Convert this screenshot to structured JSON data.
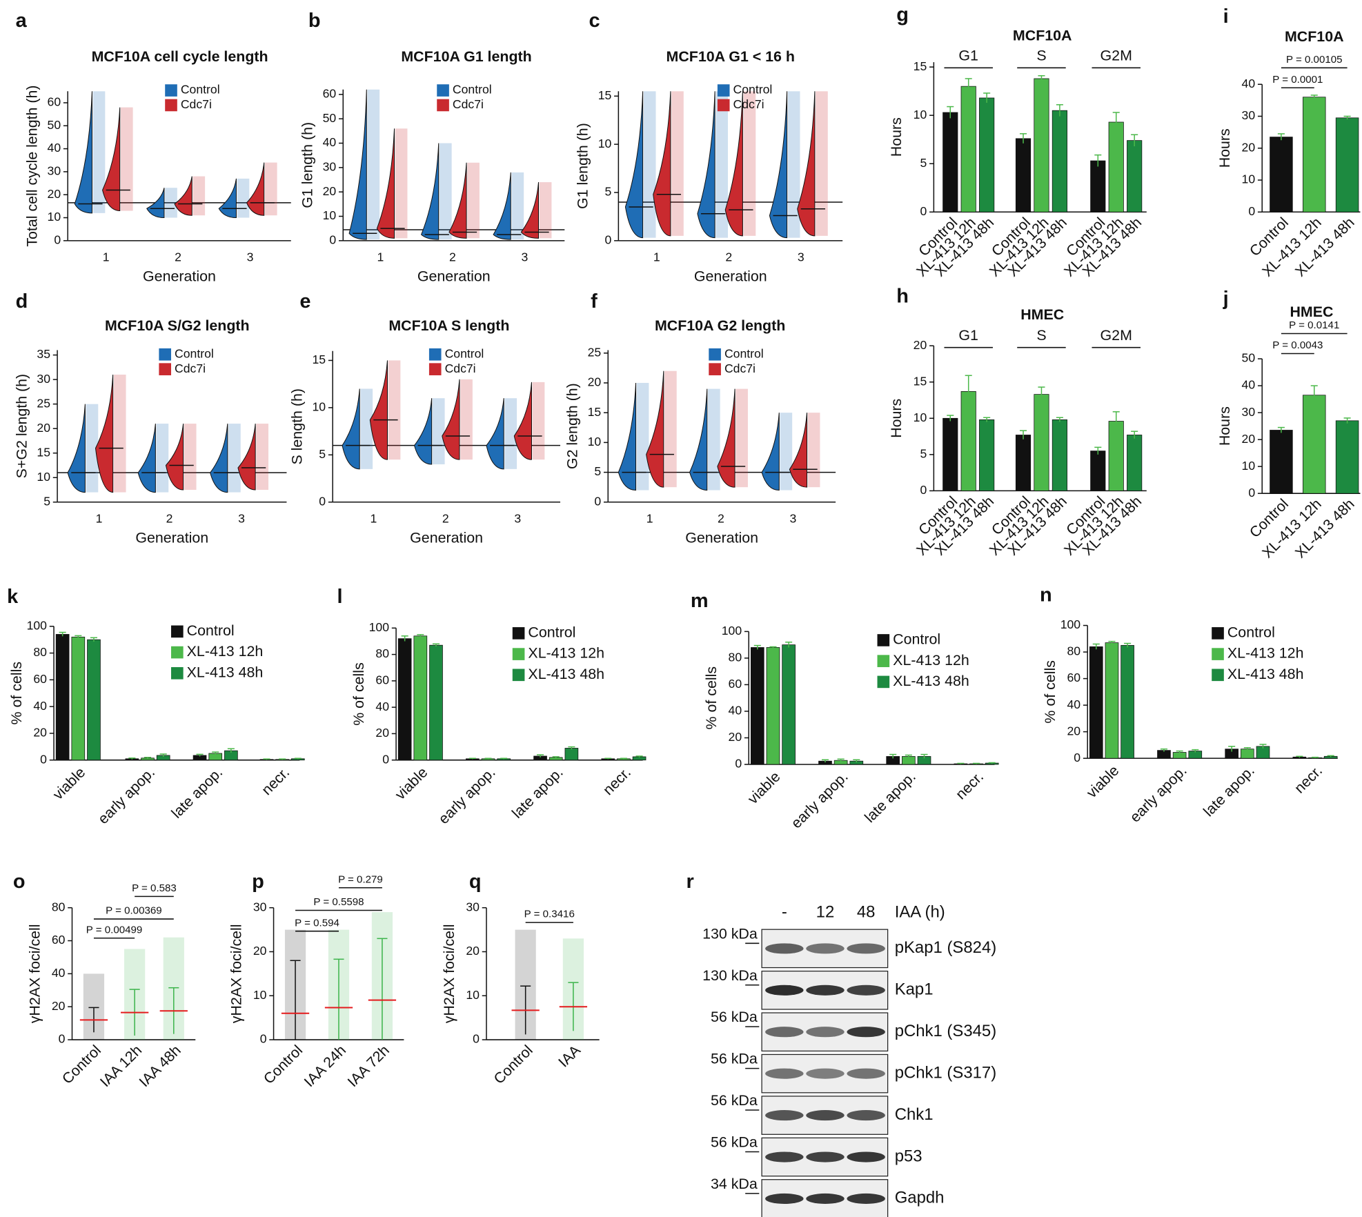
{
  "chart_data": [
    {
      "panel": "a",
      "type": "violin",
      "title": "MCF10A cell cycle length",
      "ylabel": "Total cell cycle length (h)",
      "xlabel": "Generation",
      "categories": [
        "1",
        "2",
        "3"
      ],
      "ylim": [
        0,
        65
      ],
      "yticks": [
        0,
        10,
        20,
        30,
        40,
        50,
        60
      ],
      "reference_line": 16.5,
      "legend": "upper right",
      "series": [
        {
          "name": "Control",
          "color": "#1f6db5",
          "values": [
            16,
            14,
            14
          ],
          "low": [
            12,
            10,
            10
          ],
          "high": [
            65,
            23,
            27
          ]
        },
        {
          "name": "Cdc7i",
          "color": "#c92a2f",
          "values": [
            22,
            16,
            16.5
          ],
          "low": [
            13,
            11,
            11
          ],
          "high": [
            58,
            28,
            34
          ]
        }
      ]
    },
    {
      "panel": "b",
      "type": "violin",
      "title": "MCF10A G1 length",
      "ylabel": "G1 length (h)",
      "xlabel": "Generation",
      "categories": [
        "1",
        "2",
        "3"
      ],
      "ylim": [
        0,
        62
      ],
      "yticks": [
        0,
        10,
        20,
        30,
        40,
        50,
        60
      ],
      "reference_line": 4.5,
      "legend": "upper right",
      "series": [
        {
          "name": "Control",
          "color": "#1f6db5",
          "values": [
            3,
            2.5,
            2.5
          ],
          "low": [
            0.5,
            0.5,
            0.5
          ],
          "high": [
            62,
            40,
            28
          ]
        },
        {
          "name": "Cdc7i",
          "color": "#c92a2f",
          "values": [
            5,
            3.5,
            3.5
          ],
          "low": [
            1,
            1,
            1
          ],
          "high": [
            46,
            32,
            24
          ]
        }
      ]
    },
    {
      "panel": "c",
      "type": "violin",
      "title": "MCF10A G1 < 16 h",
      "ylabel": "G1 length (h)",
      "xlabel": "Generation",
      "categories": [
        "1",
        "2",
        "3"
      ],
      "ylim": [
        0,
        15.5
      ],
      "yticks": [
        0,
        5,
        10,
        15
      ],
      "reference_line": 4,
      "legend": "upper right",
      "series": [
        {
          "name": "Control",
          "color": "#1f6db5",
          "values": [
            3.5,
            2.8,
            2.6
          ],
          "low": [
            0.3,
            0.3,
            0.3
          ],
          "high": [
            15.5,
            15.5,
            15.5
          ]
        },
        {
          "name": "Cdc7i",
          "color": "#c92a2f",
          "values": [
            4.8,
            3.2,
            3.3
          ],
          "low": [
            0.5,
            0.5,
            0.5
          ],
          "high": [
            15.5,
            15.5,
            15.5
          ]
        }
      ]
    },
    {
      "panel": "d",
      "type": "violin",
      "title": "MCF10A S/G2 length",
      "ylabel": "S+G2 length (h)",
      "xlabel": "Generation",
      "categories": [
        "1",
        "2",
        "3"
      ],
      "ylim": [
        5,
        36
      ],
      "yticks": [
        5,
        10,
        15,
        20,
        25,
        30,
        35
      ],
      "reference_line": 11,
      "legend": "upper right",
      "series": [
        {
          "name": "Control",
          "color": "#1f6db5",
          "values": [
            11,
            11,
            11
          ],
          "low": [
            7,
            7,
            7
          ],
          "high": [
            25,
            21,
            21
          ]
        },
        {
          "name": "Cdc7i",
          "color": "#c92a2f",
          "values": [
            16,
            12.5,
            12
          ],
          "low": [
            7,
            7.5,
            7.5
          ],
          "high": [
            31,
            21,
            21
          ]
        }
      ]
    },
    {
      "panel": "e",
      "type": "violin",
      "title": "MCF10A S length",
      "ylabel": "S length (h)",
      "xlabel": "Generation",
      "categories": [
        "1",
        "2",
        "3"
      ],
      "ylim": [
        0,
        16
      ],
      "yticks": [
        0,
        5,
        10,
        15
      ],
      "reference_line": 6,
      "legend": "upper right",
      "series": [
        {
          "name": "Control",
          "color": "#1f6db5",
          "values": [
            6,
            6,
            6
          ],
          "low": [
            3.5,
            4,
            3.5
          ],
          "high": [
            12,
            11,
            11
          ]
        },
        {
          "name": "Cdc7i",
          "color": "#c92a2f",
          "values": [
            8.7,
            7,
            7
          ],
          "low": [
            4.5,
            4.5,
            4.5
          ],
          "high": [
            15,
            13,
            12.7
          ]
        }
      ]
    },
    {
      "panel": "f",
      "type": "violin",
      "title": "MCF10A G2 length",
      "ylabel": "G2 length (h)",
      "xlabel": "Generation",
      "categories": [
        "1",
        "2",
        "3"
      ],
      "ylim": [
        0,
        25.5
      ],
      "yticks": [
        0,
        5,
        10,
        15,
        20,
        25
      ],
      "reference_line": 5,
      "legend": "upper right",
      "series": [
        {
          "name": "Control",
          "color": "#1f6db5",
          "values": [
            5,
            5,
            5
          ],
          "low": [
            2,
            2,
            2
          ],
          "high": [
            20,
            19,
            15
          ]
        },
        {
          "name": "Cdc7i",
          "color": "#c92a2f",
          "values": [
            8,
            6,
            5.5
          ],
          "low": [
            2.5,
            2.5,
            2.5
          ],
          "high": [
            22,
            19,
            15
          ]
        }
      ]
    },
    {
      "panel": "g",
      "type": "grouped_bar",
      "title": "MCF10A",
      "ylabel": "Hours",
      "categories": [
        "G1",
        "S",
        "G2M"
      ],
      "ylim": [
        0,
        15.5
      ],
      "yticks": [
        0,
        5,
        10,
        15
      ],
      "series": [
        {
          "name": "Control",
          "color": "#111111",
          "values": [
            10.3,
            7.6,
            5.3
          ],
          "errors": [
            0.6,
            0.5,
            0.6
          ]
        },
        {
          "name": "XL-413 12h",
          "color": "#4cb84a",
          "values": [
            13,
            13.8,
            9.3
          ],
          "errors": [
            0.8,
            0.3,
            1
          ]
        },
        {
          "name": "XL-413 48h",
          "color": "#1d8a40",
          "values": [
            11.8,
            10.5,
            7.4
          ],
          "errors": [
            0.5,
            0.6,
            0.6
          ]
        }
      ]
    },
    {
      "panel": "h",
      "type": "grouped_bar",
      "title": "HMEC",
      "ylabel": "Hours",
      "categories": [
        "G1",
        "S",
        "G2M"
      ],
      "ylim": [
        0,
        20
      ],
      "yticks": [
        0,
        5,
        10,
        15,
        20
      ],
      "series": [
        {
          "name": "Control",
          "color": "#111111",
          "values": [
            10,
            7.7,
            5.5
          ],
          "errors": [
            0.4,
            0.6,
            0.5
          ]
        },
        {
          "name": "XL-413 12h",
          "color": "#4cb84a",
          "values": [
            13.7,
            13.3,
            9.6
          ],
          "errors": [
            2.2,
            1,
            1.3
          ]
        },
        {
          "name": "XL-413 48h",
          "color": "#1d8a40",
          "values": [
            9.8,
            9.8,
            7.7
          ],
          "errors": [
            0.3,
            0.3,
            0.5
          ]
        }
      ]
    },
    {
      "panel": "i",
      "type": "bar",
      "title": "MCF10A",
      "ylabel": "Hours",
      "categories": [
        "Control",
        "XL-413 12h",
        "XL-413 48h"
      ],
      "values": [
        23.5,
        36,
        29.5
      ],
      "errors": [
        1,
        0.6,
        0.5
      ],
      "colors": [
        "#111111",
        "#4cb84a",
        "#1d8a40"
      ],
      "ylim": [
        0,
        40
      ],
      "yticks": [
        0,
        10,
        20,
        30,
        40
      ],
      "comparisons": [
        {
          "pair": [
            0,
            1
          ],
          "label": "P = 0.0001"
        },
        {
          "pair": [
            0,
            2
          ],
          "label": "P = 0.00105"
        }
      ]
    },
    {
      "panel": "j",
      "type": "bar",
      "title": "HMEC",
      "ylabel": "Hours",
      "categories": [
        "Control",
        "XL-413 12h",
        "XL-413 48h"
      ],
      "values": [
        23.5,
        36.5,
        27
      ],
      "errors": [
        1,
        3.5,
        1
      ],
      "colors": [
        "#111111",
        "#4cb84a",
        "#1d8a40"
      ],
      "ylim": [
        0,
        50
      ],
      "yticks": [
        0,
        10,
        20,
        30,
        40,
        50
      ],
      "comparisons": [
        {
          "pair": [
            0,
            1
          ],
          "label": "P = 0.0043"
        },
        {
          "pair": [
            0,
            2
          ],
          "label": "P = 0.0141"
        }
      ]
    },
    {
      "panel": "k",
      "type": "grouped_bar",
      "ylabel": "% of cells",
      "categories": [
        "viable",
        "early apop.",
        "late apop.",
        "necr."
      ],
      "ylim": [
        0,
        100
      ],
      "yticks": [
        0,
        20,
        40,
        60,
        80,
        100
      ],
      "legend": "upper right",
      "series": [
        {
          "name": "Control",
          "color": "#111111",
          "values": [
            94,
            1,
            3.5,
            0.5
          ],
          "errors": [
            1.5,
            0.5,
            0.8,
            0.3
          ]
        },
        {
          "name": "XL-413 12h",
          "color": "#4cb84a",
          "values": [
            92,
            1.5,
            5,
            0.5
          ],
          "errors": [
            1,
            0.5,
            1,
            0.3
          ]
        },
        {
          "name": "XL-413 48h",
          "color": "#1d8a40",
          "values": [
            90,
            3.5,
            7,
            1
          ],
          "errors": [
            1.5,
            1,
            1.5,
            0.3
          ]
        }
      ]
    },
    {
      "panel": "l",
      "type": "grouped_bar",
      "ylabel": "% of cells",
      "categories": [
        "viable",
        "early apop.",
        "late apop.",
        "necr."
      ],
      "ylim": [
        0,
        100
      ],
      "yticks": [
        0,
        20,
        40,
        60,
        80,
        100
      ],
      "legend": "upper right",
      "series": [
        {
          "name": "Control",
          "color": "#111111",
          "values": [
            92,
            1,
            3,
            1
          ],
          "errors": [
            2,
            0.3,
            1,
            0.3
          ]
        },
        {
          "name": "XL-413 12h",
          "color": "#4cb84a",
          "values": [
            94,
            1,
            2,
            1
          ],
          "errors": [
            1,
            0.3,
            0.5,
            0.3
          ]
        },
        {
          "name": "XL-413 48h",
          "color": "#1d8a40",
          "values": [
            87,
            1,
            9,
            2.5
          ],
          "errors": [
            1,
            0.3,
            1,
            0.5
          ]
        }
      ]
    },
    {
      "panel": "m",
      "type": "grouped_bar",
      "ylabel": "% of cells",
      "categories": [
        "viable",
        "early apop.",
        "late apop.",
        "necr."
      ],
      "ylim": [
        0,
        100
      ],
      "yticks": [
        0,
        20,
        40,
        60,
        80,
        100
      ],
      "legend": "upper right",
      "series": [
        {
          "name": "Control",
          "color": "#111111",
          "values": [
            88,
            2.5,
            6,
            0.5
          ],
          "errors": [
            1.5,
            1,
            1.5,
            0.3
          ]
        },
        {
          "name": "XL-413 12h",
          "color": "#4cb84a",
          "values": [
            88,
            3,
            6,
            0.5
          ],
          "errors": [
            0.5,
            1,
            1,
            0.3
          ]
        },
        {
          "name": "XL-413 48h",
          "color": "#1d8a40",
          "values": [
            90,
            2.5,
            6,
            1
          ],
          "errors": [
            2,
            1,
            1.5,
            0.3
          ]
        }
      ]
    },
    {
      "panel": "n",
      "type": "grouped_bar",
      "ylabel": "% of cells",
      "categories": [
        "viable",
        "early apop.",
        "late apop.",
        "necr."
      ],
      "ylim": [
        0,
        100
      ],
      "yticks": [
        0,
        20,
        40,
        60,
        80,
        100
      ],
      "legend": "upper right",
      "series": [
        {
          "name": "Control",
          "color": "#111111",
          "values": [
            84,
            6,
            7,
            1
          ],
          "errors": [
            2,
            1,
            2,
            0.5
          ]
        },
        {
          "name": "XL-413 12h",
          "color": "#4cb84a",
          "values": [
            87,
            4.5,
            7,
            0.5
          ],
          "errors": [
            1,
            1,
            1,
            0.3
          ]
        },
        {
          "name": "XL-413 48h",
          "color": "#1d8a40",
          "values": [
            85,
            5.5,
            9,
            1.5
          ],
          "errors": [
            1.5,
            1,
            1.5,
            0.5
          ]
        }
      ]
    },
    {
      "panel": "o",
      "type": "dot",
      "ylabel": "γH2AX foci/cell",
      "categories": [
        "Control",
        "IAA 12h",
        "IAA 48h"
      ],
      "values": [
        12,
        16.5,
        17.5
      ],
      "errors": [
        7.5,
        14,
        14
      ],
      "max": [
        40,
        55,
        62
      ],
      "colors": [
        "#111111",
        "#3cb44b",
        "#3cb44b"
      ],
      "mean_color": "#e41a1c",
      "ylim": [
        0,
        80
      ],
      "yticks": [
        0,
        20,
        40,
        60,
        80
      ],
      "comparisons": [
        {
          "pair": [
            0,
            1
          ],
          "label": "P = 0.00499"
        },
        {
          "pair": [
            0,
            2
          ],
          "label": "P = 0.00369"
        },
        {
          "pair": [
            1,
            2
          ],
          "label": "P = 0.583"
        }
      ]
    },
    {
      "panel": "p",
      "type": "dot",
      "ylabel": "γH2AX foci/cell",
      "categories": [
        "Control",
        "IAA 24h",
        "IAA 72h"
      ],
      "values": [
        6,
        7.3,
        9
      ],
      "errors": [
        12,
        11,
        14
      ],
      "max": [
        25,
        25,
        29
      ],
      "colors": [
        "#111111",
        "#3cb44b",
        "#3cb44b"
      ],
      "mean_color": "#e41a1c",
      "ylim": [
        0,
        30
      ],
      "yticks": [
        0,
        10,
        20,
        30
      ],
      "comparisons": [
        {
          "pair": [
            0,
            1
          ],
          "label": "P = 0.594"
        },
        {
          "pair": [
            0,
            2
          ],
          "label": "P = 0.5598"
        },
        {
          "pair": [
            1,
            2
          ],
          "label": "P = 0.279"
        }
      ]
    },
    {
      "panel": "q",
      "type": "dot",
      "ylabel": "γH2AX foci/cell",
      "categories": [
        "Control",
        "IAA"
      ],
      "values": [
        6.7,
        7.5
      ],
      "errors": [
        5.5,
        5.5
      ],
      "max": [
        25,
        23
      ],
      "colors": [
        "#111111",
        "#3cb44b"
      ],
      "mean_color": "#e41a1c",
      "ylim": [
        0,
        30
      ],
      "yticks": [
        0,
        10,
        20,
        30
      ],
      "comparisons": [
        {
          "pair": [
            0,
            1
          ],
          "label": "P = 0.3416"
        }
      ]
    }
  ],
  "blot": {
    "panel": "r",
    "lanes": [
      "-",
      "12",
      "48"
    ],
    "treatment": "IAA (h)",
    "rows": [
      {
        "marker": "130 kDa",
        "label": "pKap1 (S824)"
      },
      {
        "marker": "130 kDa",
        "label": "Kap1"
      },
      {
        "marker": "56 kDa",
        "label": "pChk1 (S345)"
      },
      {
        "marker": "56 kDa",
        "label": "pChk1 (S317)"
      },
      {
        "marker": "56 kDa",
        "label": "Chk1"
      },
      {
        "marker": "56 kDa",
        "label": "p53"
      },
      {
        "marker": "34 kDa",
        "label": "Gapdh"
      }
    ]
  }
}
